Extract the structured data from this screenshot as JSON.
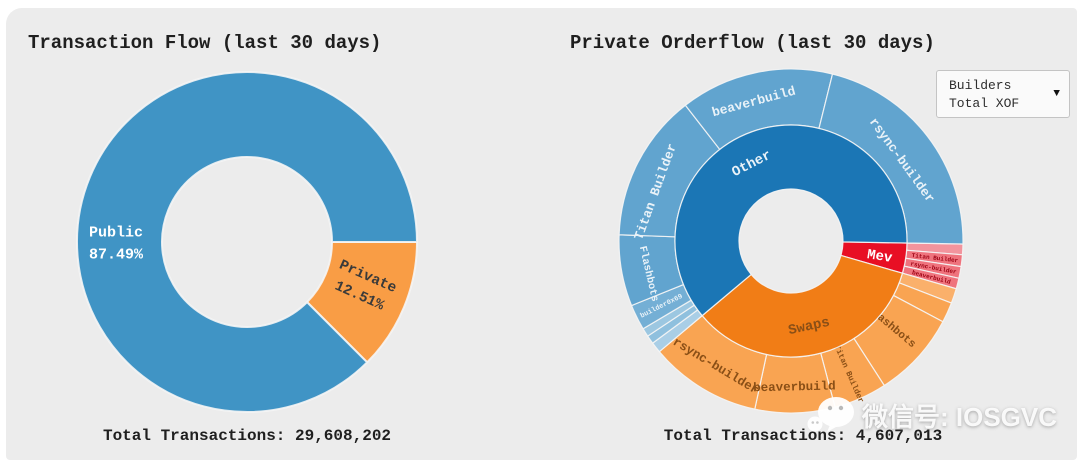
{
  "watermark": {
    "icon": "wechat-icon",
    "text": "微信号: IOSGVC"
  },
  "dropdown": {
    "line1": "Builders",
    "line2": "Total XOF",
    "arrow_icon": "▼"
  },
  "chart_data": [
    {
      "type": "pie",
      "variant": "donut",
      "title": "Transaction Flow (last 30 days)",
      "footer": "Total Transactions: 29,608,202",
      "total_transactions": "29,608,202",
      "start_angle_deg": 0,
      "segments": [
        {
          "label": "Private",
          "value_pct": 12.51,
          "color": "#f99d45",
          "text_color": "#3a3a3a",
          "label_lines": [
            "Private",
            "12.51%"
          ]
        },
        {
          "label": "Public",
          "value_pct": 87.49,
          "color": "#4094c5",
          "text_color": "#ffffff",
          "label_lines": [
            "Public",
            "87.49%"
          ]
        }
      ]
    },
    {
      "type": "sunburst",
      "title": "Private Orderflow (last 30 days)",
      "footer": "Total Transactions: 4,607,013",
      "total_transactions": "4,607,013",
      "start_angle_deg": 1,
      "rings": {
        "inner": [
          {
            "label": "Mev",
            "value_pct": 4.2,
            "color": "#e80f24",
            "text_color": "#ffffff"
          },
          {
            "label": "Swaps",
            "value_pct": 34.4,
            "color": "#f17d16",
            "text_color": "#8a4f16"
          },
          {
            "label": "Other",
            "value_pct": 61.4,
            "color": "#1b76b5",
            "text_color": "#e9f2f8"
          }
        ],
        "outer": [
          {
            "label": "",
            "parent": "Mev",
            "value_pct": 1.0,
            "color": "#f2949d"
          },
          {
            "label": "Titan Builder",
            "parent": "Mev",
            "value_pct": 1.1,
            "color": "#ef737d",
            "text_color": "#9b0012"
          },
          {
            "label": "rsync-builder",
            "parent": "Mev",
            "value_pct": 1.1,
            "color": "#ef737d",
            "text_color": "#9b0012"
          },
          {
            "label": "beaverbuild",
            "parent": "Mev",
            "value_pct": 1.0,
            "color": "#ef737d",
            "text_color": "#9b0012"
          },
          {
            "label": "",
            "parent": "Swaps",
            "value_pct": 1.4,
            "color": "#fab06b"
          },
          {
            "label": "",
            "parent": "Swaps",
            "value_pct": 1.9,
            "color": "#f9a452"
          },
          {
            "label": "Flashbots",
            "parent": "Swaps",
            "value_pct": 8.1,
            "color": "#f9a452",
            "text_color": "#8a4f16"
          },
          {
            "label": "Titan Builder",
            "parent": "Swaps",
            "value_pct": 5.0,
            "color": "#f9a452",
            "text_color": "#8a4f16"
          },
          {
            "label": "beaverbuild",
            "parent": "Swaps",
            "value_pct": 7.5,
            "color": "#f9a452",
            "text_color": "#8a4f16"
          },
          {
            "label": "rsync-builder",
            "parent": "Swaps",
            "value_pct": 10.5,
            "color": "#f9a452",
            "text_color": "#8a4f16"
          },
          {
            "label": "",
            "parent": "Other",
            "value_pct": 1.0,
            "color": "#a9cee6"
          },
          {
            "label": "",
            "parent": "Other",
            "value_pct": 0.8,
            "color": "#8fc0de"
          },
          {
            "label": "",
            "parent": "Other",
            "value_pct": 0.8,
            "color": "#9cc7e1"
          },
          {
            "label": "builder0x69",
            "parent": "Other",
            "value_pct": 2.4,
            "color": "#74afd5",
            "text_color": "#e9f2f8"
          },
          {
            "label": "Flashbots",
            "parent": "Other",
            "value_pct": 6.7,
            "color": "#61a4cf",
            "text_color": "#e9f2f8"
          },
          {
            "label": "Titan Builder",
            "parent": "Other",
            "value_pct": 13.9,
            "color": "#61a4cf",
            "text_color": "#e9f2f8"
          },
          {
            "label": "beaverbuild",
            "parent": "Other",
            "value_pct": 14.4,
            "color": "#61a4cf",
            "text_color": "#e9f2f8"
          },
          {
            "label": "rsync-builder",
            "parent": "Other",
            "value_pct": 21.4,
            "color": "#61a4cf",
            "text_color": "#e9f2f8"
          }
        ]
      }
    }
  ]
}
